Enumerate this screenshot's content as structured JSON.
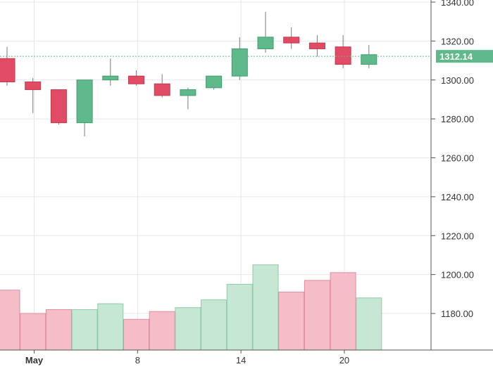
{
  "chart_data": {
    "type": "candlestick",
    "price_axis": {
      "ticks": [
        1180,
        1200,
        1220,
        1240,
        1260,
        1280,
        1300,
        1320,
        1340
      ],
      "tick_labels": [
        "1180.00",
        "1200.00",
        "1220.00",
        "1240.00",
        "1260.00",
        "1280.00",
        "1300.00",
        "1320.00",
        "1340.00"
      ],
      "range": [
        1162,
        1341
      ],
      "position": "right"
    },
    "x_axis": {
      "labels": [
        {
          "text": "May",
          "day": 1,
          "bold": true
        },
        {
          "text": "8",
          "day": 8,
          "bold": false
        },
        {
          "text": "14",
          "day": 14,
          "bold": false
        },
        {
          "text": "20",
          "day": 20,
          "bold": false
        }
      ]
    },
    "last_price": {
      "value": 1312.14,
      "label": "1312.14"
    },
    "grid": true,
    "colors": {
      "up": "#5fb98a",
      "down": "#e14b63",
      "volume_up": "#c6e7d4",
      "volume_down": "#f5bdc8",
      "volume_up_edge": "#8fcaa8",
      "volume_down_edge": "#e08d9d",
      "grid": "#e3e8ec",
      "last_price_tag": "#5fb98a",
      "last_price_line": "#5fb98a"
    },
    "candles": [
      {
        "day": 0,
        "open": 1311,
        "high": 1317,
        "low": 1297,
        "close": 1299
      },
      {
        "day": 1,
        "open": 1299,
        "high": 1301,
        "low": 1283,
        "close": 1295
      },
      {
        "day": 2,
        "open": 1295,
        "high": 1295,
        "low": 1277,
        "close": 1278
      },
      {
        "day": 3,
        "open": 1278,
        "high": 1300,
        "low": 1271,
        "close": 1300
      },
      {
        "day": 4,
        "open": 1300,
        "high": 1311,
        "low": 1297,
        "close": 1302
      },
      {
        "day": 7,
        "open": 1302,
        "high": 1305,
        "low": 1297,
        "close": 1298
      },
      {
        "day": 8,
        "open": 1298,
        "high": 1303,
        "low": 1291,
        "close": 1292
      },
      {
        "day": 9,
        "open": 1292,
        "high": 1296,
        "low": 1285,
        "close": 1295
      },
      {
        "day": 10,
        "open": 1296,
        "high": 1302,
        "low": 1295,
        "close": 1302
      },
      {
        "day": 11,
        "open": 1302,
        "high": 1322,
        "low": 1300,
        "close": 1316
      },
      {
        "day": 14,
        "open": 1316,
        "high": 1335,
        "low": 1314,
        "close": 1322
      },
      {
        "day": 15,
        "open": 1322,
        "high": 1327,
        "low": 1316,
        "close": 1319
      },
      {
        "day": 16,
        "open": 1319,
        "high": 1323,
        "low": 1312,
        "close": 1316
      },
      {
        "day": 17,
        "open": 1317,
        "high": 1323,
        "low": 1306,
        "close": 1308
      },
      {
        "day": 18,
        "open": 1308,
        "high": 1318,
        "low": 1306,
        "close": 1313
      }
    ],
    "volume": [
      {
        "day": 0,
        "level": 1192,
        "direction": "down"
      },
      {
        "day": 1,
        "level": 1180,
        "direction": "down"
      },
      {
        "day": 2,
        "level": 1182,
        "direction": "down"
      },
      {
        "day": 3,
        "level": 1182,
        "direction": "up"
      },
      {
        "day": 4,
        "level": 1185,
        "direction": "up"
      },
      {
        "day": 7,
        "level": 1177,
        "direction": "down"
      },
      {
        "day": 8,
        "level": 1181,
        "direction": "down"
      },
      {
        "day": 9,
        "level": 1183,
        "direction": "up"
      },
      {
        "day": 10,
        "level": 1187,
        "direction": "up"
      },
      {
        "day": 11,
        "level": 1195,
        "direction": "up"
      },
      {
        "day": 14,
        "level": 1205,
        "direction": "up"
      },
      {
        "day": 15,
        "level": 1191,
        "direction": "down"
      },
      {
        "day": 16,
        "level": 1197,
        "direction": "down"
      },
      {
        "day": 17,
        "level": 1201,
        "direction": "down"
      },
      {
        "day": 18,
        "level": 1188,
        "direction": "up"
      }
    ]
  }
}
